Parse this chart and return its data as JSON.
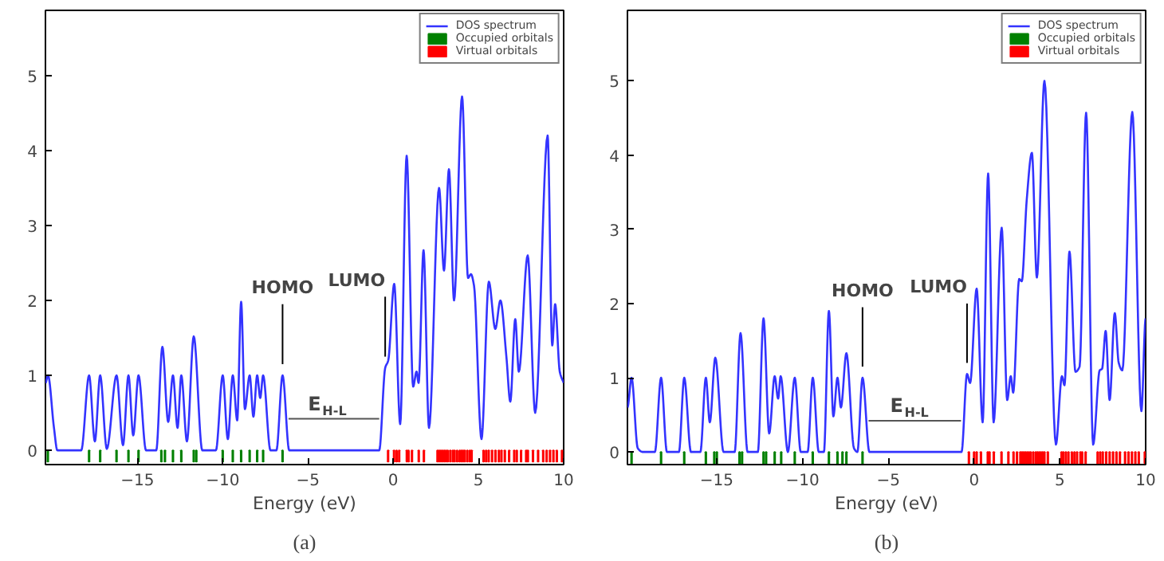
{
  "chart_data": [
    {
      "type": "line",
      "xlabel": "Energy (eV)",
      "xlim": [
        -20.4,
        10
      ],
      "ylim": [
        -0.19,
        5.87
      ],
      "xticks": [
        {
          "value": -15,
          "label": "−15"
        },
        {
          "value": -10,
          "label": "−10"
        },
        {
          "value": -5,
          "label": "−5"
        },
        0,
        5,
        10
      ],
      "yticks": [
        0,
        1,
        2,
        3,
        4,
        5
      ],
      "grid": false,
      "legend": "top right",
      "series": [
        {
          "name": "DOS spectrum",
          "color": "#3333ff",
          "x": [
            -20.4,
            -20.25,
            -19.9,
            -19.7,
            -18.3,
            -17.84,
            -17.5,
            -17.19,
            -16.8,
            -16.23,
            -15.85,
            -15.53,
            -15.25,
            -14.94,
            -14.5,
            -13.9,
            -13.54,
            -13.2,
            -12.92,
            -12.65,
            -12.43,
            -12.1,
            -11.7,
            -11.2,
            -10.4,
            -10.0,
            -9.7,
            -9.41,
            -9.15,
            -8.92,
            -8.7,
            -8.42,
            -8.2,
            -7.98,
            -7.8,
            -7.63,
            -7.2,
            -6.85,
            -6.49,
            -6.1,
            -0.82,
            -0.47,
            -0.29,
            0.06,
            0.41,
            0.79,
            1.17,
            1.37,
            1.49,
            1.78,
            2.1,
            2.69,
            2.98,
            3.27,
            3.57,
            4.04,
            4.39,
            4.56,
            4.74,
            5.18,
            5.61,
            5.99,
            6.29,
            6.64,
            6.87,
            7.16,
            7.37,
            7.89,
            8.33,
            9.06,
            9.33,
            9.5,
            9.77,
            10.0
          ],
          "values": [
            0.9,
            1.0,
            0.3,
            0,
            0,
            1.0,
            0.12,
            1.0,
            0.02,
            1.0,
            0.07,
            1.0,
            0.2,
            1.0,
            0,
            0,
            1.38,
            0.38,
            1.0,
            0.3,
            1.0,
            0.12,
            1.52,
            0,
            0,
            1.0,
            0.15,
            1.0,
            0.4,
            1.98,
            0.55,
            1.0,
            0.45,
            1.0,
            0.7,
            1.0,
            0,
            0,
            1.0,
            0,
            0,
            1.1,
            1.2,
            2.22,
            0.35,
            3.93,
            0.85,
            1.05,
            0.9,
            2.67,
            0.3,
            3.5,
            2.4,
            3.75,
            2.0,
            4.72,
            2.3,
            2.35,
            2.2,
            0.15,
            2.25,
            1.62,
            2.0,
            1.25,
            0.65,
            1.75,
            1.05,
            2.6,
            0.5,
            4.2,
            1.4,
            1.95,
            1.05,
            0.9
          ]
        },
        {
          "name": "Occupied orbitals",
          "type": "bar",
          "color": "#008000",
          "x": [
            -20.26,
            -17.84,
            -17.19,
            -16.23,
            -15.53,
            -14.94,
            -13.6,
            -13.39,
            -12.92,
            -12.43,
            -11.7,
            -11.55,
            -10.0,
            -9.41,
            -8.92,
            -8.42,
            -7.98,
            -7.63,
            -6.49
          ],
          "values": [
            -0.15,
            -0.15,
            -0.15,
            -0.15,
            -0.15,
            -0.15,
            -0.15,
            -0.15,
            -0.15,
            -0.15,
            -0.15,
            -0.15,
            -0.15,
            -0.15,
            -0.15,
            -0.15,
            -0.15,
            -0.15,
            -0.15
          ]
        },
        {
          "name": "Virtual orbitals",
          "type": "bar",
          "color": "#ff0000",
          "x": [
            -0.3,
            0.05,
            0.2,
            0.35,
            0.8,
            0.9,
            1.1,
            1.5,
            1.8,
            2.6,
            2.7,
            2.8,
            2.9,
            3.0,
            3.1,
            3.2,
            3.35,
            3.5,
            3.6,
            3.75,
            3.9,
            4.0,
            4.1,
            4.2,
            4.35,
            4.5,
            4.6,
            5.3,
            5.45,
            5.6,
            5.8,
            6.0,
            6.2,
            6.35,
            6.55,
            6.8,
            7.1,
            7.25,
            7.5,
            7.8,
            7.9,
            8.2,
            8.5,
            8.8,
            9.0,
            9.2,
            9.4,
            9.6,
            9.9
          ],
          "values": [
            -0.15,
            -0.15,
            -0.15,
            -0.15,
            -0.15,
            -0.15,
            -0.15,
            -0.15,
            -0.15,
            -0.15,
            -0.15,
            -0.15,
            -0.15,
            -0.15,
            -0.15,
            -0.15,
            -0.15,
            -0.15,
            -0.15,
            -0.15,
            -0.15,
            -0.15,
            -0.15,
            -0.15,
            -0.15,
            -0.15,
            -0.15,
            -0.15,
            -0.15,
            -0.15,
            -0.15,
            -0.15,
            -0.15,
            -0.15,
            -0.15,
            -0.15,
            -0.15,
            -0.15,
            -0.15,
            -0.15,
            -0.15,
            -0.15,
            -0.15,
            -0.15,
            -0.15,
            -0.15,
            -0.15,
            -0.15,
            -0.15
          ]
        }
      ],
      "annotations": [
        {
          "text": "HOMO",
          "x": -6.49,
          "y": 1.0
        },
        {
          "text": "LUMO",
          "x": -0.47,
          "y": 1.1
        },
        {
          "text": "E$_{H-L}$",
          "x": -3.5,
          "y": 0
        },
        "(a)"
      ]
    },
    {
      "type": "line",
      "xlabel": "Energy (eV)",
      "xlim": [
        -20.2,
        10
      ],
      "ylim": [
        -0.17,
        5.95
      ],
      "xticks": [
        {
          "value": -15,
          "label": "−15"
        },
        {
          "value": -10,
          "label": "−10"
        },
        {
          "value": -5,
          "label": "−5"
        },
        0,
        5,
        10
      ],
      "yticks": [
        0,
        1,
        2,
        3,
        4,
        5
      ],
      "grid": false,
      "legend": "top right",
      "series": [
        {
          "name": "DOS spectrum",
          "color": "#3333ff",
          "x": [
            -20.2,
            -19.96,
            -19.6,
            -19.3,
            -18.6,
            -18.24,
            -17.9,
            -17.2,
            -16.89,
            -16.5,
            -15.95,
            -15.63,
            -15.4,
            -15.08,
            -14.6,
            -13.95,
            -13.61,
            -13.2,
            -12.6,
            -12.27,
            -11.94,
            -11.62,
            -11.42,
            -11.27,
            -10.85,
            -10.45,
            -10.1,
            -9.7,
            -9.4,
            -9.05,
            -8.75,
            -8.46,
            -8.2,
            -7.96,
            -7.76,
            -7.44,
            -7.0,
            -6.8,
            -6.5,
            -6.1,
            -0.73,
            -0.41,
            -0.23,
            0.15,
            0.5,
            0.82,
            1.14,
            1.61,
            1.93,
            2.14,
            2.28,
            2.63,
            2.78,
            3.07,
            3.37,
            3.66,
            4.1,
            4.77,
            5.12,
            5.27,
            5.56,
            5.91,
            6.15,
            6.53,
            6.94,
            7.32,
            7.46,
            7.67,
            7.9,
            8.2,
            8.43,
            8.64,
            9.22,
            9.75,
            10.0
          ],
          "values": [
            0.6,
            1.0,
            0.05,
            0,
            0,
            1.0,
            0,
            0,
            1.0,
            0,
            0,
            1.0,
            0.4,
            1.27,
            0,
            0,
            1.6,
            0,
            0,
            1.8,
            0.25,
            1.02,
            0.72,
            1.02,
            0,
            1.0,
            0,
            0,
            1.0,
            0,
            0,
            1.9,
            0.48,
            1.0,
            0.6,
            1.33,
            0.05,
            0,
            1.0,
            0,
            0,
            1.05,
            0.93,
            2.2,
            0.4,
            3.75,
            0.4,
            3.02,
            0.7,
            1.02,
            0.8,
            2.33,
            2.3,
            3.4,
            4.03,
            2.35,
            5.0,
            0.1,
            1.02,
            0.9,
            2.7,
            1.08,
            1.15,
            4.57,
            0.1,
            1.1,
            1.12,
            1.63,
            0.7,
            1.87,
            1.2,
            1.1,
            4.58,
            0.55,
            1.8
          ]
        },
        {
          "name": "Occupied orbitals",
          "type": "bar",
          "color": "#008000",
          "x": [
            -19.96,
            -18.24,
            -16.89,
            -15.63,
            -15.14,
            -14.99,
            -13.67,
            -13.52,
            -12.27,
            -12.12,
            -11.62,
            -11.24,
            -10.45,
            -9.4,
            -8.46,
            -7.96,
            -7.67,
            -7.44,
            -6.5
          ],
          "values": [
            -0.15,
            -0.15,
            -0.15,
            -0.15,
            -0.15,
            -0.15,
            -0.15,
            -0.15,
            -0.15,
            -0.15,
            -0.15,
            -0.15,
            -0.15,
            -0.15,
            -0.15,
            -0.15,
            -0.15,
            -0.15,
            -0.15
          ]
        },
        {
          "name": "Virtual orbitals",
          "type": "bar",
          "color": "#ff0000",
          "x": [
            -0.3,
            0.0,
            0.15,
            0.4,
            0.8,
            0.9,
            1.15,
            1.6,
            2.0,
            2.3,
            2.5,
            2.7,
            2.8,
            2.9,
            3.0,
            3.1,
            3.2,
            3.3,
            3.45,
            3.6,
            3.7,
            3.8,
            3.9,
            4.0,
            4.1,
            4.3,
            5.1,
            5.2,
            5.35,
            5.5,
            5.7,
            5.85,
            6.0,
            6.2,
            6.3,
            6.5,
            7.2,
            7.35,
            7.5,
            7.7,
            7.9,
            8.1,
            8.3,
            8.5,
            8.8,
            9.0,
            9.2,
            9.4,
            9.6,
            9.95
          ],
          "values": [
            -0.15,
            -0.15,
            -0.15,
            -0.15,
            -0.15,
            -0.15,
            -0.15,
            -0.15,
            -0.15,
            -0.15,
            -0.15,
            -0.15,
            -0.15,
            -0.15,
            -0.15,
            -0.15,
            -0.15,
            -0.15,
            -0.15,
            -0.15,
            -0.15,
            -0.15,
            -0.15,
            -0.15,
            -0.15,
            -0.15,
            -0.15,
            -0.15,
            -0.15,
            -0.15,
            -0.15,
            -0.15,
            -0.15,
            -0.15,
            -0.15,
            -0.15,
            -0.15,
            -0.15,
            -0.15,
            -0.15,
            -0.15,
            -0.15,
            -0.15,
            -0.15,
            -0.15,
            -0.15,
            -0.15,
            -0.15,
            -0.15,
            -0.15
          ]
        }
      ],
      "annotations": [
        {
          "text": "HOMO",
          "x": -6.5,
          "y": 1.0
        },
        {
          "text": "LUMO",
          "x": -0.41,
          "y": 1.05
        },
        {
          "text": "E$_{H-L}$",
          "x": -3.4,
          "y": 0
        },
        "(b)"
      ]
    }
  ]
}
